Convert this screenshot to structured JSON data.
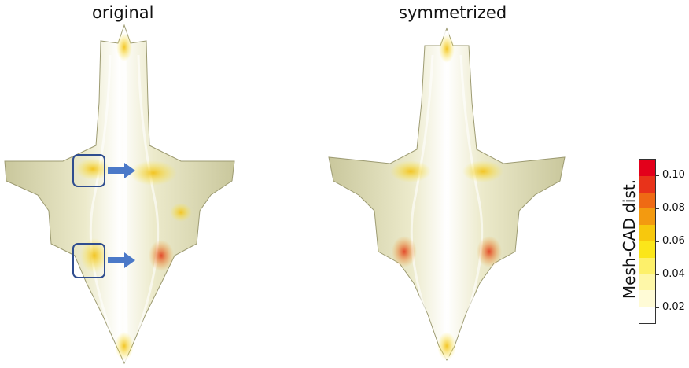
{
  "panels": {
    "left_title": "original",
    "right_title": "symmetrized"
  },
  "colorbar": {
    "label": "Mesh-CAD dist.",
    "ticks": [
      "0.10",
      "0.08",
      "0.06",
      "0.04",
      "0.02"
    ],
    "colors_top_to_bottom": [
      "#e3001b",
      "#e8331a",
      "#ef6a14",
      "#f39a10",
      "#f7c80d",
      "#fbe61a",
      "#fdf06a",
      "#fef7a8",
      "#fffbd6",
      "#ffffff"
    ]
  },
  "colors": {
    "surface": "#efeed6",
    "surface_shade": "#b9b78e",
    "highlight_box": "#2f4d8f",
    "arrow": "#4b79c8"
  },
  "icons": [
    "highlight-box",
    "arrow-right-icon"
  ]
}
